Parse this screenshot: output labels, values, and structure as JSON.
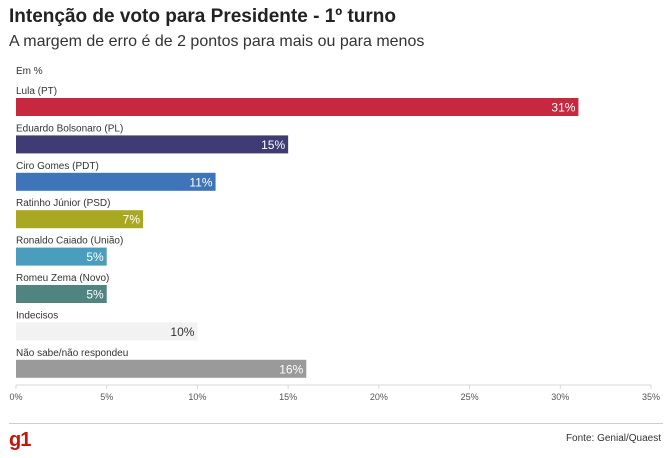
{
  "header": {
    "title": "Intenção de voto para Presidente - 1º turno",
    "subtitle": "A margem de erro é de 2 pontos para mais ou para menos",
    "unit": "Em %"
  },
  "footer": {
    "logo": "g1",
    "source": "Fonte: Genial/Quaest"
  },
  "chart_data": {
    "type": "bar",
    "orientation": "horizontal",
    "categories": [
      "Lula (PT)",
      "Eduardo Bolsonaro (PL)",
      "Ciro Gomes (PDT)",
      "Ratinho Júnior (PSD)",
      "Ronaldo Caiado (União)",
      "Romeu Zema (Novo)",
      "Indecisos",
      "Não sabe/não respondeu"
    ],
    "values": [
      31,
      15,
      11,
      7,
      5,
      5,
      10,
      16
    ],
    "data_labels": [
      "31%",
      "15%",
      "11%",
      "7%",
      "5%",
      "5%",
      "10%",
      "16%"
    ],
    "colors": [
      "#c8283f",
      "#3f3b74",
      "#3d75b8",
      "#a9a823",
      "#4a9dbd",
      "#4f8480",
      "#f2f2f2",
      "#9a9a9a"
    ],
    "label_colors": [
      "#ffffff",
      "#ffffff",
      "#ffffff",
      "#ffffff",
      "#ffffff",
      "#ffffff",
      "#333333",
      "#ffffff"
    ],
    "xlim": [
      0,
      35
    ],
    "xticks": [
      0,
      5,
      10,
      15,
      20,
      25,
      30,
      35
    ],
    "xtick_labels": [
      "0%",
      "5%",
      "10%",
      "15%",
      "20%",
      "25%",
      "30%",
      "35%"
    ],
    "grid": false,
    "legend": "none"
  }
}
